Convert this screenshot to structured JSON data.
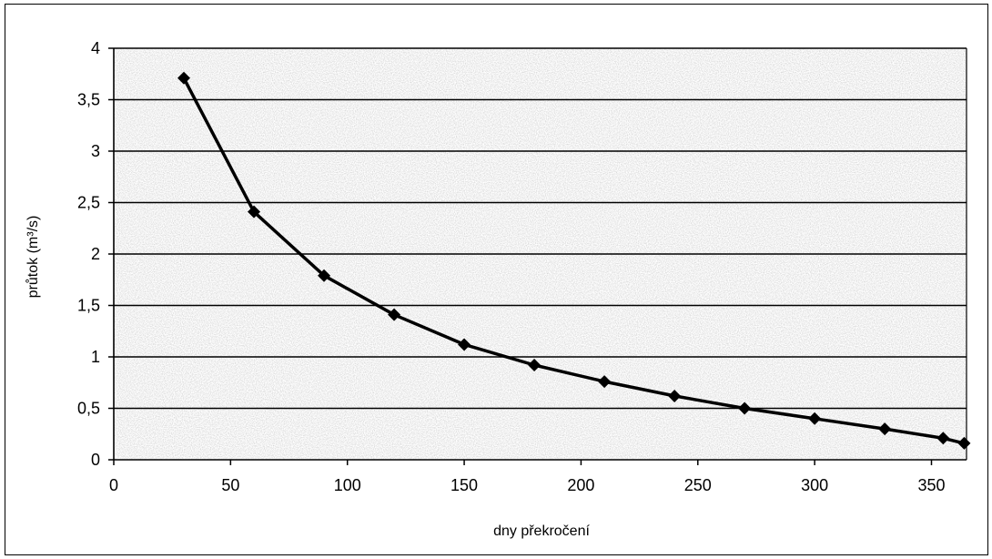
{
  "chart_data": {
    "type": "line",
    "title": "",
    "xlabel": "dny překročení",
    "ylabel": "průtok (m³/s)",
    "xlim": [
      0,
      365
    ],
    "ylim": [
      0,
      4
    ],
    "x_ticks": [
      0,
      50,
      100,
      150,
      200,
      250,
      300,
      350
    ],
    "x_tick_labels": [
      "0",
      "50",
      "100",
      "150",
      "200",
      "250",
      "300",
      "350"
    ],
    "y_ticks": [
      0,
      0.5,
      1,
      1.5,
      2,
      2.5,
      3,
      3.5,
      4
    ],
    "y_tick_labels": [
      "0",
      "0,5",
      "1",
      "1,5",
      "2",
      "2,5",
      "3",
      "3,5",
      "4"
    ],
    "grid": "horizontal",
    "legend": "none",
    "series": [
      {
        "color": "#000000",
        "marker": "diamond",
        "points": [
          {
            "x": 30,
            "y": 3.71
          },
          {
            "x": 60,
            "y": 2.41
          },
          {
            "x": 90,
            "y": 1.79
          },
          {
            "x": 120,
            "y": 1.41
          },
          {
            "x": 150,
            "y": 1.12
          },
          {
            "x": 180,
            "y": 0.92
          },
          {
            "x": 210,
            "y": 0.76
          },
          {
            "x": 240,
            "y": 0.62
          },
          {
            "x": 270,
            "y": 0.5
          },
          {
            "x": 300,
            "y": 0.4
          },
          {
            "x": 330,
            "y": 0.3
          },
          {
            "x": 355,
            "y": 0.21
          },
          {
            "x": 364,
            "y": 0.16
          }
        ]
      }
    ],
    "colors": {
      "line": "#000000",
      "grid": "#000000",
      "plot_background": "#d9d9d9"
    }
  }
}
